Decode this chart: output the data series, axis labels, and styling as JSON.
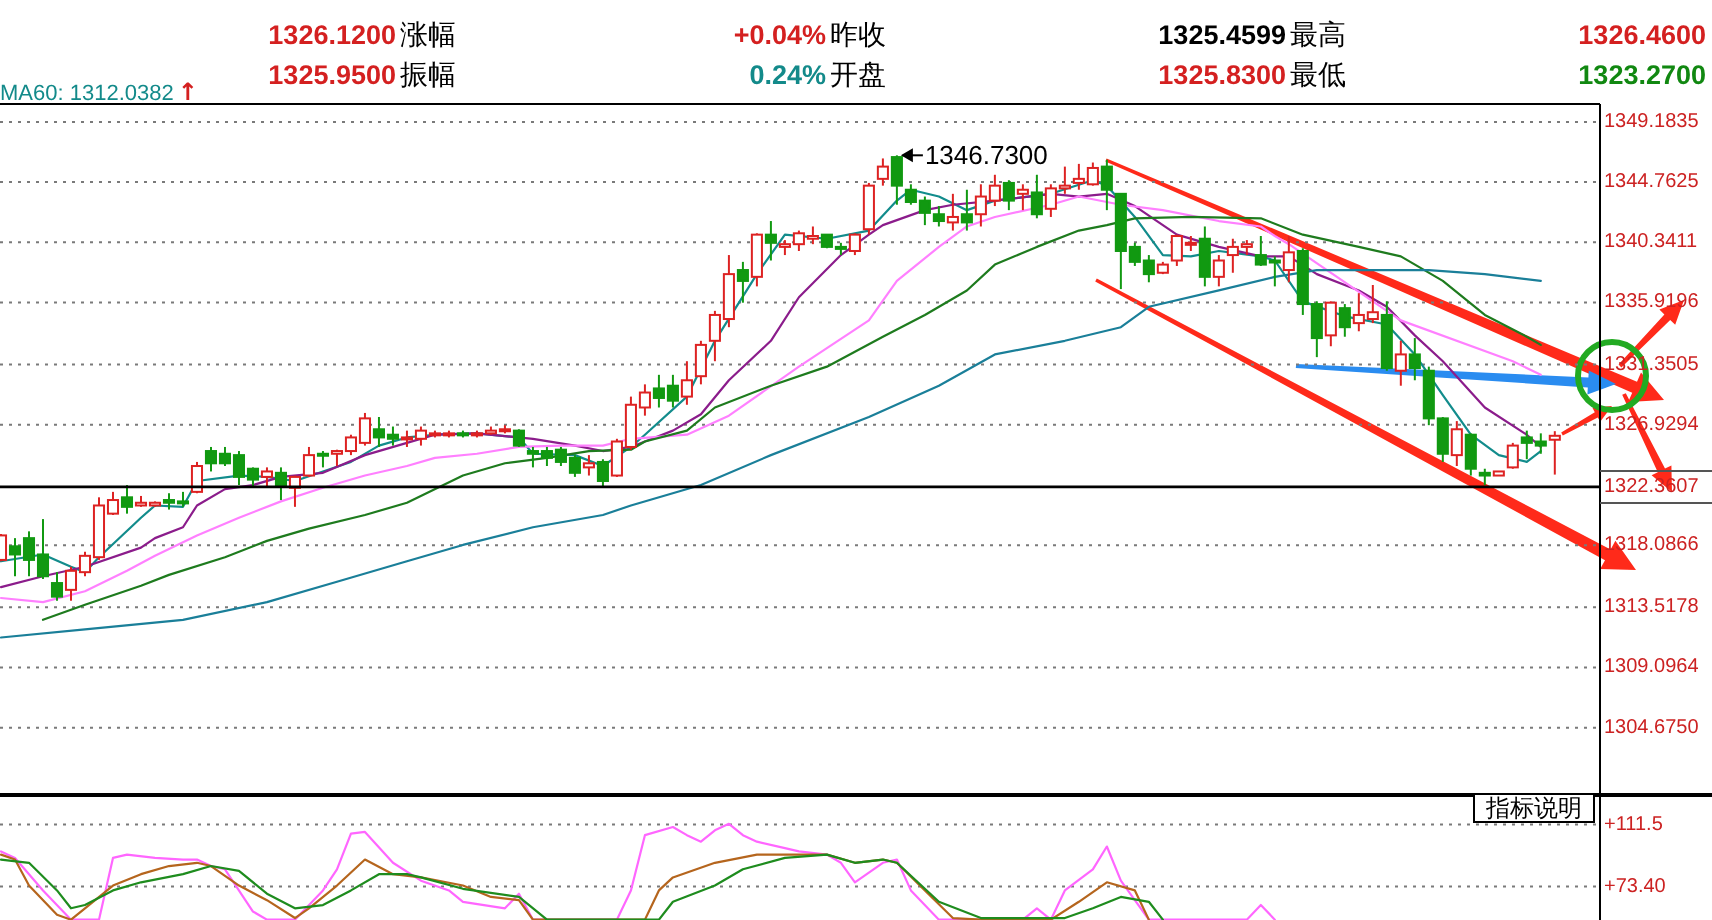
{
  "chart_data": [
    {
      "type": "candlestick",
      "categories": [
        null,
        null,
        null,
        null,
        null,
        null,
        null,
        null,
        null,
        null,
        null,
        null,
        null,
        null,
        null,
        null,
        null,
        null,
        null,
        null,
        null,
        null,
        null,
        null,
        null,
        null,
        null,
        null,
        null,
        null,
        null,
        null,
        null,
        null,
        null,
        null,
        null,
        null,
        null,
        null,
        null,
        null,
        null,
        null,
        null,
        null,
        null,
        null,
        null,
        null,
        null,
        null,
        null,
        null,
        null,
        null,
        null,
        null,
        null,
        null,
        null,
        null,
        null,
        null,
        null,
        null,
        null,
        null,
        null,
        null,
        null,
        null,
        null,
        null,
        null,
        null,
        null,
        null,
        null,
        null,
        null,
        null,
        null,
        null,
        null,
        null,
        null,
        null,
        null,
        null,
        null,
        null,
        null,
        null,
        null,
        null,
        null,
        null,
        null,
        null,
        null,
        null,
        null,
        null,
        null,
        null,
        null,
        null,
        null,
        null,
        null,
        null
      ],
      "ohlc": [
        [
          1317.0,
          1318.9,
          1316.9,
          1318.8
        ],
        [
          1318.0,
          1318.6,
          1315.8,
          1317.4
        ],
        [
          1318.6,
          1319.1,
          1315.8,
          1317.0
        ],
        [
          1317.4,
          1320.0,
          1315.6,
          1315.8
        ],
        [
          1315.3,
          1316.1,
          1314.0,
          1314.3
        ],
        [
          1314.8,
          1316.5,
          1314.0,
          1316.2
        ],
        [
          1316.1,
          1317.6,
          1315.8,
          1317.3
        ],
        [
          1317.2,
          1321.6,
          1317.0,
          1321.0
        ],
        [
          1320.4,
          1322.0,
          1320.3,
          1321.4
        ],
        [
          1321.6,
          1322.5,
          1320.4,
          1320.9
        ],
        [
          1321.0,
          1321.7,
          1320.9,
          1321.2
        ],
        [
          1321.0,
          1321.3,
          1320.9,
          1321.2
        ],
        [
          1321.4,
          1321.9,
          1320.7,
          1321.2
        ],
        [
          1321.3,
          1322.0,
          1320.9,
          1321.2
        ],
        [
          1322.0,
          1324.2,
          1321.9,
          1323.9
        ],
        [
          1325.0,
          1325.3,
          1323.5,
          1324.1
        ],
        [
          1324.8,
          1325.3,
          1323.9,
          1324.1
        ],
        [
          1324.7,
          1325.0,
          1322.5,
          1323.1
        ],
        [
          1323.7,
          1323.8,
          1322.3,
          1322.9
        ],
        [
          1323.1,
          1323.8,
          1322.3,
          1323.5
        ],
        [
          1323.4,
          1323.8,
          1321.4,
          1322.5
        ],
        [
          1322.3,
          1323.2,
          1320.9,
          1323.1
        ],
        [
          1323.2,
          1325.3,
          1323.1,
          1324.7
        ],
        [
          1324.8,
          1325.0,
          1323.8,
          1324.7
        ],
        [
          1324.8,
          1325.1,
          1323.9,
          1325.0
        ],
        [
          1325.0,
          1326.2,
          1324.7,
          1326.0
        ],
        [
          1325.6,
          1327.8,
          1325.4,
          1327.4
        ],
        [
          1326.6,
          1327.5,
          1325.3,
          1326.0
        ],
        [
          1326.2,
          1326.8,
          1325.4,
          1325.9
        ],
        [
          1325.9,
          1326.5,
          1325.3,
          1326.0
        ],
        [
          1325.9,
          1326.8,
          1325.4,
          1326.5
        ],
        [
          1326.2,
          1326.5,
          1326.0,
          1326.3
        ],
        [
          1326.2,
          1326.5,
          1326.0,
          1326.3
        ],
        [
          1326.3,
          1326.5,
          1326.0,
          1326.2
        ],
        [
          1326.2,
          1326.5,
          1326.0,
          1326.3
        ],
        [
          1326.3,
          1326.8,
          1326.2,
          1326.5
        ],
        [
          1326.5,
          1326.9,
          1326.3,
          1326.6
        ],
        [
          1326.5,
          1326.6,
          1325.3,
          1325.4
        ],
        [
          1325.0,
          1325.3,
          1323.8,
          1324.8
        ],
        [
          1325.0,
          1325.3,
          1323.9,
          1324.5
        ],
        [
          1325.1,
          1325.3,
          1323.9,
          1324.2
        ],
        [
          1324.5,
          1324.7,
          1323.1,
          1323.4
        ],
        [
          1323.8,
          1324.7,
          1323.2,
          1324.1
        ],
        [
          1324.2,
          1324.4,
          1322.3,
          1322.8
        ],
        [
          1323.2,
          1325.9,
          1323.1,
          1325.7
        ],
        [
          1325.3,
          1329.0,
          1325.1,
          1328.4
        ],
        [
          1328.2,
          1329.9,
          1327.6,
          1329.3
        ],
        [
          1329.6,
          1330.6,
          1328.2,
          1328.9
        ],
        [
          1329.8,
          1330.6,
          1328.2,
          1328.7
        ],
        [
          1329.0,
          1331.6,
          1328.4,
          1330.2
        ],
        [
          1330.5,
          1333.1,
          1329.9,
          1332.8
        ],
        [
          1333.1,
          1335.3,
          1331.6,
          1335.0
        ],
        [
          1334.7,
          1339.4,
          1334.1,
          1338.0
        ],
        [
          1338.3,
          1338.9,
          1335.9,
          1337.5
        ],
        [
          1337.8,
          1341.0,
          1337.1,
          1340.9
        ],
        [
          1340.9,
          1341.9,
          1339.0,
          1340.3
        ],
        [
          1340.0,
          1340.5,
          1339.4,
          1340.2
        ],
        [
          1340.2,
          1341.2,
          1339.7,
          1341.0
        ],
        [
          1340.6,
          1341.5,
          1340.2,
          1340.8
        ],
        [
          1340.9,
          1340.9,
          1339.9,
          1340.0
        ],
        [
          1340.0,
          1340.3,
          1339.4,
          1339.9
        ],
        [
          1339.7,
          1341.0,
          1339.4,
          1340.9
        ],
        [
          1341.3,
          1344.7,
          1340.9,
          1344.5
        ],
        [
          1345.0,
          1346.5,
          1344.5,
          1345.9
        ],
        [
          1346.6,
          1346.73,
          1343.1,
          1344.5
        ],
        [
          1344.2,
          1344.6,
          1343.1,
          1343.3
        ],
        [
          1343.4,
          1343.7,
          1341.6,
          1342.5
        ],
        [
          1342.4,
          1343.0,
          1341.5,
          1341.9
        ],
        [
          1341.8,
          1343.9,
          1341.2,
          1342.2
        ],
        [
          1342.4,
          1344.2,
          1341.2,
          1341.8
        ],
        [
          1342.4,
          1344.6,
          1341.5,
          1343.7
        ],
        [
          1343.4,
          1345.3,
          1343.0,
          1344.5
        ],
        [
          1344.7,
          1344.9,
          1342.7,
          1343.4
        ],
        [
          1343.9,
          1344.6,
          1342.7,
          1344.2
        ],
        [
          1344.0,
          1345.3,
          1342.1,
          1342.4
        ],
        [
          1342.8,
          1344.6,
          1342.2,
          1344.3
        ],
        [
          1344.3,
          1345.9,
          1343.9,
          1344.5
        ],
        [
          1344.7,
          1346.1,
          1344.2,
          1345.0
        ],
        [
          1344.6,
          1346.2,
          1344.5,
          1345.8
        ],
        [
          1345.9,
          1346.4,
          1342.7,
          1344.2
        ],
        [
          1343.9,
          1343.9,
          1336.9,
          1339.7
        ],
        [
          1340.0,
          1340.3,
          1338.6,
          1338.9
        ],
        [
          1339.0,
          1339.4,
          1337.4,
          1338.0
        ],
        [
          1338.1,
          1338.9,
          1338.0,
          1338.7
        ],
        [
          1339.0,
          1340.9,
          1338.6,
          1340.8
        ],
        [
          1340.2,
          1340.8,
          1339.7,
          1340.3
        ],
        [
          1340.6,
          1341.5,
          1337.1,
          1337.8
        ],
        [
          1337.8,
          1339.4,
          1337.1,
          1339.0
        ],
        [
          1339.4,
          1340.6,
          1338.1,
          1340.0
        ],
        [
          1340.0,
          1340.5,
          1339.4,
          1340.2
        ],
        [
          1339.4,
          1340.8,
          1338.6,
          1338.7
        ],
        [
          1339.0,
          1339.3,
          1337.1,
          1338.9
        ],
        [
          1338.3,
          1340.8,
          1337.4,
          1339.6
        ],
        [
          1339.7,
          1339.9,
          1335.0,
          1335.8
        ],
        [
          1335.8,
          1336.0,
          1331.9,
          1333.3
        ],
        [
          1333.5,
          1336.0,
          1332.7,
          1335.9
        ],
        [
          1335.5,
          1335.8,
          1333.4,
          1334.1
        ],
        [
          1334.4,
          1336.6,
          1333.8,
          1335.0
        ],
        [
          1334.7,
          1337.2,
          1334.4,
          1335.2
        ],
        [
          1335.0,
          1336.0,
          1330.9,
          1331.1
        ],
        [
          1330.9,
          1333.1,
          1329.8,
          1332.1
        ],
        [
          1332.1,
          1333.3,
          1330.2,
          1331.1
        ],
        [
          1330.9,
          1331.2,
          1326.9,
          1327.4
        ],
        [
          1327.4,
          1327.5,
          1324.2,
          1324.8
        ],
        [
          1324.7,
          1327.2,
          1323.9,
          1326.6
        ],
        [
          1326.2,
          1326.3,
          1323.2,
          1323.7
        ],
        [
          1323.4,
          1323.7,
          1322.5,
          1323.2
        ],
        [
          1323.2,
          1323.5,
          1323.2,
          1323.5
        ],
        [
          1323.8,
          1325.6,
          1323.7,
          1325.4
        ],
        [
          1326.0,
          1326.5,
          1324.4,
          1325.6
        ],
        [
          1325.7,
          1326.3,
          1324.8,
          1325.4
        ],
        [
          1325.83,
          1326.46,
          1323.27,
          1326.12
        ]
      ],
      "colors": [
        "#dd2222",
        "#119911",
        "#119911",
        "#119911",
        "#119911",
        "#dd2222",
        "#dd2222",
        "#dd2222",
        "#dd2222",
        "#119911",
        "#dd2222",
        "#dd2222",
        "#119911",
        "#119911",
        "#dd2222",
        "#119911",
        "#119911",
        "#119911",
        "#119911",
        "#dd2222",
        "#119911",
        "#dd2222",
        "#dd2222",
        "#119911",
        "#dd2222",
        "#dd2222",
        "#dd2222",
        "#119911",
        "#119911",
        "#dd2222",
        "#dd2222",
        "#dd2222",
        "#dd2222",
        "#119911",
        "#dd2222",
        "#dd2222",
        "#dd2222",
        "#119911",
        "#119911",
        "#119911",
        "#119911",
        "#119911",
        "#dd2222",
        "#119911",
        "#dd2222",
        "#dd2222",
        "#dd2222",
        "#119911",
        "#119911",
        "#dd2222",
        "#dd2222",
        "#dd2222",
        "#dd2222",
        "#119911",
        "#dd2222",
        "#119911",
        "#dd2222",
        "#dd2222",
        "#dd2222",
        "#119911",
        "#119911",
        "#dd2222",
        "#dd2222",
        "#dd2222",
        "#119911",
        "#119911",
        "#119911",
        "#119911",
        "#dd2222",
        "#119911",
        "#dd2222",
        "#dd2222",
        "#119911",
        "#dd2222",
        "#119911",
        "#dd2222",
        "#dd2222",
        "#dd2222",
        "#dd2222",
        "#119911",
        "#119911",
        "#119911",
        "#119911",
        "#dd2222",
        "#dd2222",
        "#dd2222",
        "#119911",
        "#dd2222",
        "#dd2222",
        "#dd2222",
        "#119911",
        "#119911",
        "#dd2222",
        "#119911",
        "#119911",
        "#dd2222",
        "#119911",
        "#dd2222",
        "#dd2222",
        "#119911",
        "#dd2222",
        "#119911",
        "#119911",
        "#119911",
        "#dd2222",
        "#119911",
        "#119911",
        "#dd2222",
        "#dd2222",
        "#119911",
        "#119911",
        "#dd2222"
      ],
      "series": [
        {
          "type": "line",
          "color": "#128c8c",
          "values": [
            1316.9,
            null,
            null,
            1317.4,
            null,
            1316.5,
            1316.1,
            1317.2,
            null,
            null,
            1320.1,
            1321.0,
            null,
            1320.9,
            1322.8,
            null,
            null,
            1323.2,
            null,
            1323.1,
            null,
            1322.8,
            null,
            1323.5,
            null,
            1324.2,
            null,
            1325.4,
            null,
            1326.0,
            null,
            1326.2,
            null,
            null,
            1326.3,
            null,
            null,
            1326.0,
            1324.8,
            null,
            null,
            1324.7,
            null,
            1323.9,
            null,
            1325.3,
            1326.2,
            null,
            null,
            1329.0,
            null,
            1333.1,
            null,
            null,
            1338.0,
            null,
            1340.9,
            null,
            null,
            1340.6,
            null,
            null,
            1341.2,
            null,
            1343.4,
            1344.2,
            null,
            1343.7,
            null,
            1342.7,
            null,
            1343.4,
            null,
            null,
            null,
            1343.9,
            null,
            null,
            1344.9,
            1344.5,
            null,
            1342.2,
            null,
            1339.4,
            null,
            1339.3,
            null,
            1339.7,
            null,
            null,
            1339.3,
            1339.0,
            null,
            1336.0,
            null,
            null,
            1334.9,
            null,
            null,
            1334.3,
            null,
            1332.1,
            null,
            1329.1,
            null,
            1326.2,
            null,
            1324.7,
            null,
            1324.2,
            1325.0,
            null
          ]
        },
        {
          "type": "line",
          "color": "#8b1c8b",
          "values": [
            1315.0,
            null,
            null,
            1315.8,
            null,
            null,
            1316.5,
            null,
            null,
            null,
            1317.9,
            1318.6,
            null,
            1319.4,
            1321.0,
            null,
            1322.2,
            null,
            1322.5,
            null,
            1323.1,
            null,
            null,
            1323.4,
            null,
            null,
            1324.7,
            null,
            null,
            1325.6,
            null,
            1326.2,
            null,
            null,
            1326.3,
            null,
            null,
            null,
            1325.9,
            null,
            null,
            1325.4,
            null,
            1325.0,
            null,
            1325.3,
            1325.7,
            null,
            1326.5,
            null,
            1327.7,
            null,
            1330.2,
            null,
            null,
            1333.1,
            null,
            1336.3,
            null,
            null,
            1339.4,
            null,
            1340.9,
            1341.6,
            null,
            null,
            1342.7,
            null,
            1343.1,
            null,
            null,
            1343.4,
            null,
            null,
            null,
            1343.9,
            null,
            1343.7,
            null,
            1343.9,
            null,
            1343.0,
            null,
            null,
            1340.9,
            null,
            null,
            1340.0,
            null,
            null,
            1339.3,
            null,
            1339.3,
            null,
            1338.0,
            null,
            null,
            1336.8,
            null,
            1335.6,
            null,
            1333.5,
            null,
            1331.6,
            null,
            null,
            1328.2,
            null,
            null,
            1326.2,
            1325.3,
            null
          ]
        },
        {
          "type": "line",
          "color": "#ff80ff",
          "values": [
            1314.2,
            null,
            null,
            1313.9,
            null,
            null,
            1314.7,
            null,
            null,
            1316.2,
            null,
            1317.3,
            null,
            null,
            1318.8,
            null,
            null,
            1320.1,
            null,
            null,
            1321.3,
            null,
            null,
            1322.3,
            null,
            null,
            1323.2,
            null,
            null,
            1323.9,
            null,
            1324.5,
            null,
            null,
            1324.8,
            null,
            null,
            1325.3,
            null,
            null,
            1325.4,
            null,
            null,
            1325.4,
            null,
            1325.9,
            null,
            null,
            null,
            1326.2,
            null,
            null,
            1327.6,
            null,
            null,
            null,
            null,
            1331.2,
            null,
            null,
            null,
            null,
            1334.6,
            null,
            1337.5,
            null,
            null,
            1340.0,
            null,
            1341.5,
            null,
            1342.2,
            null,
            null,
            null,
            1343.1,
            null,
            1343.7,
            null,
            null,
            1343.1,
            null,
            null,
            1342.7,
            null,
            null,
            null,
            1341.9,
            null,
            null,
            1341.5,
            1340.8,
            1340.2,
            null,
            null,
            null,
            null,
            null,
            null,
            null,
            1334.6,
            null,
            null,
            null,
            null,
            null,
            null,
            null,
            1331.6,
            null,
            1330.6,
            null
          ]
        },
        {
          "type": "line",
          "color": "#1e7b1e",
          "values": [
            null,
            null,
            null,
            1312.6,
            null,
            null,
            1313.7,
            null,
            null,
            null,
            1315.1,
            null,
            1315.9,
            null,
            null,
            null,
            1317.2,
            null,
            null,
            1318.4,
            null,
            null,
            1319.3,
            null,
            null,
            null,
            1320.3,
            null,
            null,
            1321.2,
            null,
            null,
            null,
            1323.2,
            null,
            null,
            1324.1,
            null,
            null,
            1324.5,
            null,
            null,
            1325.0,
            null,
            null,
            1325.1,
            1325.7,
            null,
            null,
            1326.5,
            null,
            1328.2,
            null,
            null,
            null,
            1329.8,
            null,
            null,
            null,
            1331.2,
            null,
            null,
            null,
            1333.4,
            null,
            null,
            1335.0,
            null,
            null,
            1336.8,
            null,
            1338.7,
            null,
            null,
            1340.0,
            null,
            null,
            1341.2,
            null,
            1341.6,
            null,
            1342.1,
            null,
            null,
            null,
            1342.2,
            null,
            null,
            null,
            null,
            1342.1,
            null,
            null,
            1340.9,
            null,
            null,
            null,
            1340.0,
            null,
            null,
            1339.3,
            null,
            null,
            1337.5,
            null,
            null,
            1335.0,
            null,
            null,
            1333.4,
            1332.8,
            null
          ]
        },
        {
          "type": "line",
          "color": "#1a7f99",
          "values": [
            1311.3,
            null,
            null,
            null,
            null,
            null,
            1311.9,
            null,
            null,
            null,
            null,
            null,
            null,
            1312.6,
            null,
            null,
            null,
            null,
            null,
            1313.9,
            null,
            null,
            null,
            null,
            1315.4,
            null,
            null,
            null,
            null,
            1316.9,
            null,
            null,
            null,
            1318.1,
            null,
            null,
            null,
            null,
            1319.4,
            null,
            null,
            null,
            null,
            1320.3,
            null,
            1321.0,
            null,
            null,
            null,
            null,
            1322.5,
            null,
            null,
            null,
            null,
            1324.7,
            null,
            null,
            null,
            null,
            null,
            null,
            1327.5,
            null,
            null,
            null,
            null,
            1329.8,
            null,
            null,
            null,
            1332.1,
            null,
            null,
            null,
            null,
            1333.1,
            null,
            null,
            null,
            1334.1,
            null,
            1335.6,
            null,
            null,
            null,
            null,
            1336.8,
            null,
            null,
            null,
            1337.8,
            null,
            null,
            1338.3,
            null,
            null,
            1338.3,
            null,
            null,
            null,
            null,
            1338.3,
            null,
            null,
            null,
            1338.0,
            null,
            null,
            null,
            1337.5,
            null
          ]
        }
      ],
      "ylim": [
        1299.8,
        1350.5
      ],
      "yticks": [
        1349.1835,
        1344.7625,
        1340.3411,
        1335.9196,
        1331.3505,
        1326.9294,
        1318.0866,
        1313.5178,
        1309.0964,
        {
          "value": 1304.675,
          "label": "1304.6750"
        }
      ],
      "grid": "y",
      "tick_labels": "y",
      "ref_lines": [
        {
          "axis": "y",
          "value": 1322.3607,
          "label": "1322.3607",
          "color": "#000000"
        }
      ],
      "annotations": [
        "1326.1200",
        "涨幅",
        "+0.04%",
        "昨收",
        "1325.4599",
        "最高",
        "1326.4600",
        "1325.9500",
        "振幅",
        "0.24%",
        "开盘",
        "1325.8300",
        "最低",
        "1323.2700",
        "MA60: 1312.0382",
        "↑",
        "1346.7300"
      ]
    },
    {
      "type": "line",
      "categories": [
        null,
        null,
        null,
        null,
        null,
        null,
        null,
        null,
        null,
        null,
        null,
        null,
        null,
        null,
        null,
        null,
        null,
        null,
        null,
        null,
        null,
        null,
        null,
        null,
        null,
        null,
        null,
        null,
        null,
        null,
        null,
        null,
        null,
        null,
        null,
        null,
        null,
        null,
        null,
        null,
        null,
        null,
        null,
        null,
        null,
        null,
        null,
        null,
        null,
        null,
        null,
        null,
        null,
        null,
        null,
        null,
        null,
        null,
        null,
        null,
        null,
        null,
        null,
        null,
        null,
        null,
        null,
        null,
        null,
        null,
        null,
        null,
        null,
        null,
        null,
        null,
        null,
        null,
        null,
        null,
        null,
        null,
        null,
        null,
        null,
        null,
        null,
        null,
        null,
        null,
        null,
        null,
        null,
        null,
        null,
        null,
        null,
        null,
        null,
        null,
        null,
        null,
        null,
        null,
        null,
        null,
        null,
        null,
        null,
        null,
        null,
        null
      ],
      "series": [
        {
          "color": "#ff66ff",
          "values": [
            95,
            91,
            null,
            71,
            null,
            53,
            null,
            53,
            91,
            93,
            null,
            91,
            null,
            90,
            90,
            86,
            84,
            null,
            58,
            53,
            null,
            53,
            null,
            71,
            84,
            106,
            107,
            null,
            88,
            null,
            77,
            null,
            71,
            64,
            null,
            null,
            60,
            69,
            53,
            null,
            null,
            null,
            null,
            null,
            53,
            71,
            105,
            null,
            110,
            105,
            101,
            108,
            112,
            105,
            101,
            null,
            97,
            95,
            null,
            93,
            88,
            76,
            null,
            88,
            90,
            71,
            null,
            53,
            null,
            null,
            null,
            null,
            null,
            53,
            60,
            53,
            71,
            null,
            84,
            98,
            77,
            null,
            53,
            null,
            null,
            null,
            null,
            null,
            null,
            53,
            62,
            53,
            null,
            null,
            null,
            null,
            null,
            null,
            null,
            null,
            null,
            null,
            null,
            null,
            null,
            null,
            null,
            null,
            null,
            null,
            null,
            null
          ]
        },
        {
          "color": "#b5651d",
          "values": [
            93,
            90,
            74,
            null,
            56,
            53,
            60,
            null,
            74,
            null,
            81,
            null,
            86,
            null,
            88,
            86,
            null,
            74,
            null,
            65,
            null,
            54,
            60,
            null,
            74,
            null,
            90,
            null,
            81,
            null,
            79,
            null,
            null,
            74,
            null,
            67,
            null,
            65,
            53,
            null,
            null,
            null,
            null,
            null,
            null,
            null,
            53,
            71,
            79,
            null,
            null,
            88,
            null,
            null,
            93,
            null,
            93,
            null,
            null,
            93,
            null,
            88,
            null,
            90,
            88,
            null,
            71,
            null,
            54,
            null,
            53,
            null,
            null,
            null,
            null,
            53,
            null,
            64,
            null,
            76,
            null,
            71,
            53,
            null,
            null,
            null,
            null,
            null,
            null,
            null,
            null,
            null,
            null,
            null,
            null,
            null,
            null,
            null,
            null,
            null,
            null,
            null,
            null,
            null,
            null,
            null,
            null,
            null,
            null,
            null,
            null,
            null
          ]
        },
        {
          "color": "#1e8c1e",
          "values": [
            90,
            null,
            88,
            null,
            71,
            60,
            62,
            null,
            71,
            null,
            76,
            null,
            null,
            81,
            null,
            86,
            null,
            83,
            null,
            69,
            null,
            60,
            null,
            62,
            null,
            71,
            null,
            81,
            null,
            81,
            79,
            null,
            null,
            72,
            null,
            null,
            null,
            67,
            null,
            53,
            null,
            null,
            null,
            null,
            null,
            null,
            null,
            53,
            64,
            null,
            null,
            74,
            null,
            84,
            null,
            null,
            91,
            null,
            null,
            93,
            null,
            88,
            null,
            90,
            88,
            null,
            null,
            64,
            null,
            null,
            54,
            null,
            null,
            null,
            null,
            null,
            54,
            null,
            60,
            null,
            67,
            null,
            64,
            53,
            null,
            null,
            null,
            null,
            null,
            null,
            null,
            null,
            null,
            null,
            null,
            null,
            null,
            null,
            null,
            null,
            null,
            null,
            null,
            null,
            null,
            null,
            null,
            null,
            null,
            null,
            null,
            null
          ]
        }
      ],
      "ylim": [
        52.8,
        129.1
      ],
      "yticks": [
        {
          "value": 111.5,
          "label": "+111.5"
        },
        {
          "value": 73.4,
          "label": "+73.40"
        }
      ],
      "grid": "y",
      "tick_labels": "y",
      "annotations": [
        "指标说明"
      ]
    }
  ]
}
